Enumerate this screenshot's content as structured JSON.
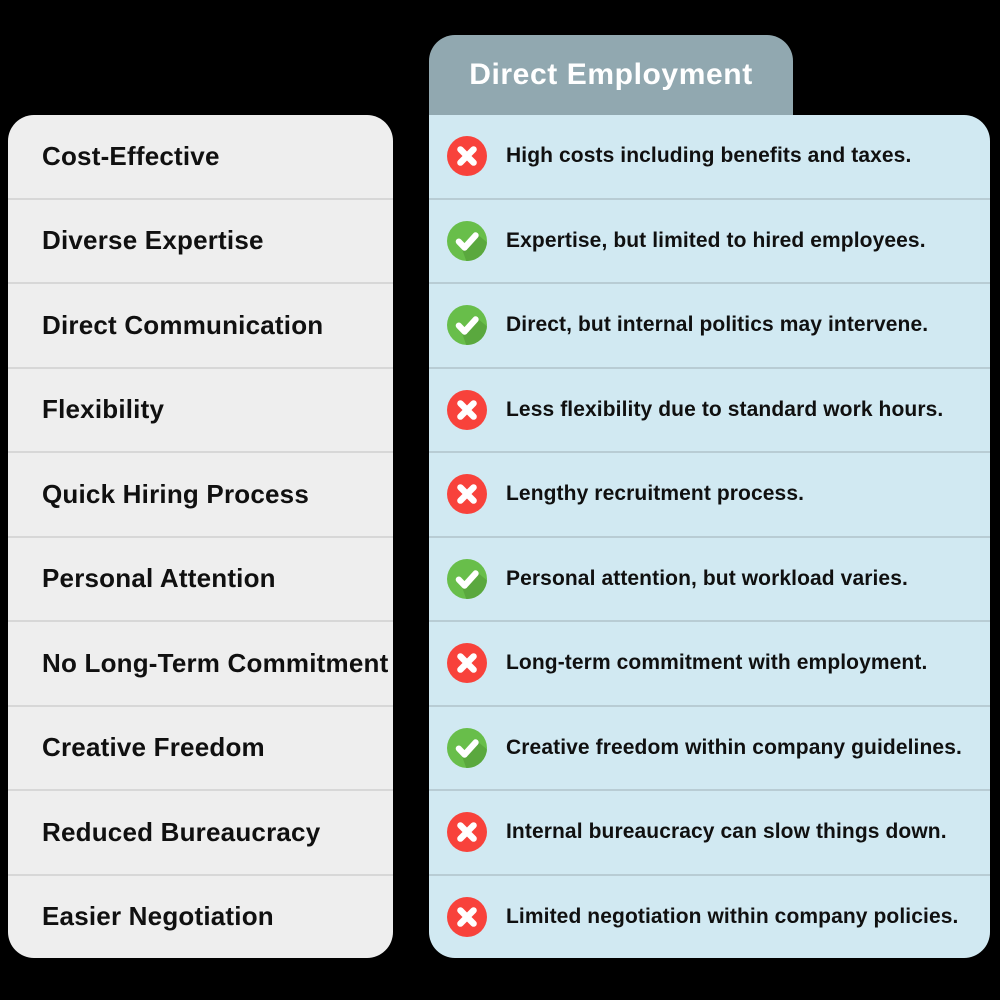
{
  "header": {
    "title": "Direct Employment"
  },
  "colors": {
    "background": "#000000",
    "feature_panel": "#eeeeee",
    "feature_divider": "#d7d7d7",
    "detail_panel": "#d1e9f2",
    "detail_divider": "#b8ccd4",
    "header_bg": "#91a8b0",
    "header_text": "#ffffff",
    "text": "#101010",
    "positive": "#68be4a",
    "positive_shadow": "#5aa83e",
    "negative": "#f8423b",
    "icon_glyph": "#ffffff"
  },
  "rows": [
    {
      "feature": "Cost-Effective",
      "status": "negative",
      "description": "High costs including benefits and taxes."
    },
    {
      "feature": "Diverse Expertise",
      "status": "positive",
      "description": "Expertise, but limited to hired employees."
    },
    {
      "feature": "Direct Communication",
      "status": "positive",
      "description": "Direct, but internal politics may intervene."
    },
    {
      "feature": "Flexibility",
      "status": "negative",
      "description": "Less flexibility due to standard work hours."
    },
    {
      "feature": "Quick Hiring Process",
      "status": "negative",
      "description": "Lengthy recruitment process."
    },
    {
      "feature": "Personal Attention",
      "status": "positive",
      "description": "Personal attention, but workload varies."
    },
    {
      "feature": "No Long-Term Commitment",
      "status": "negative",
      "description": "Long-term commitment with employment."
    },
    {
      "feature": "Creative Freedom",
      "status": "positive",
      "description": "Creative freedom within company guidelines."
    },
    {
      "feature": "Reduced Bureaucracy",
      "status": "negative",
      "description": "Internal bureaucracy can slow things down."
    },
    {
      "feature": "Easier Negotiation",
      "status": "negative",
      "description": "Limited negotiation within company policies."
    }
  ]
}
